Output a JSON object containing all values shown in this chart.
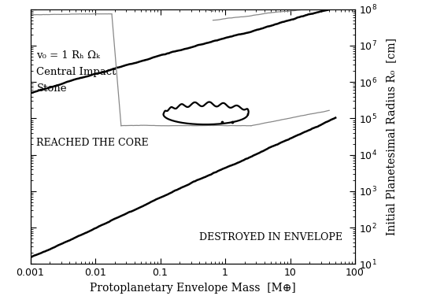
{
  "xlim": [
    0.001,
    100
  ],
  "ylim": [
    10,
    100000000.0
  ],
  "xlabel": "Protoplanetary Envelope Mass  [M⊕]",
  "ylabel": "Initial Planetesimal Radius R₀  [cm]",
  "annotation_text1": "v₀ = 1 Rₕ Ωₖ",
  "annotation_text2": "Central Impact",
  "annotation_text3": "Stone",
  "annotation_reached": "REACHED THE CORE",
  "annotation_destroyed": "DESTROYED IN ENVELOPE",
  "text_color": "#000000",
  "background_color": "#ffffff",
  "gray_color": "#888888"
}
